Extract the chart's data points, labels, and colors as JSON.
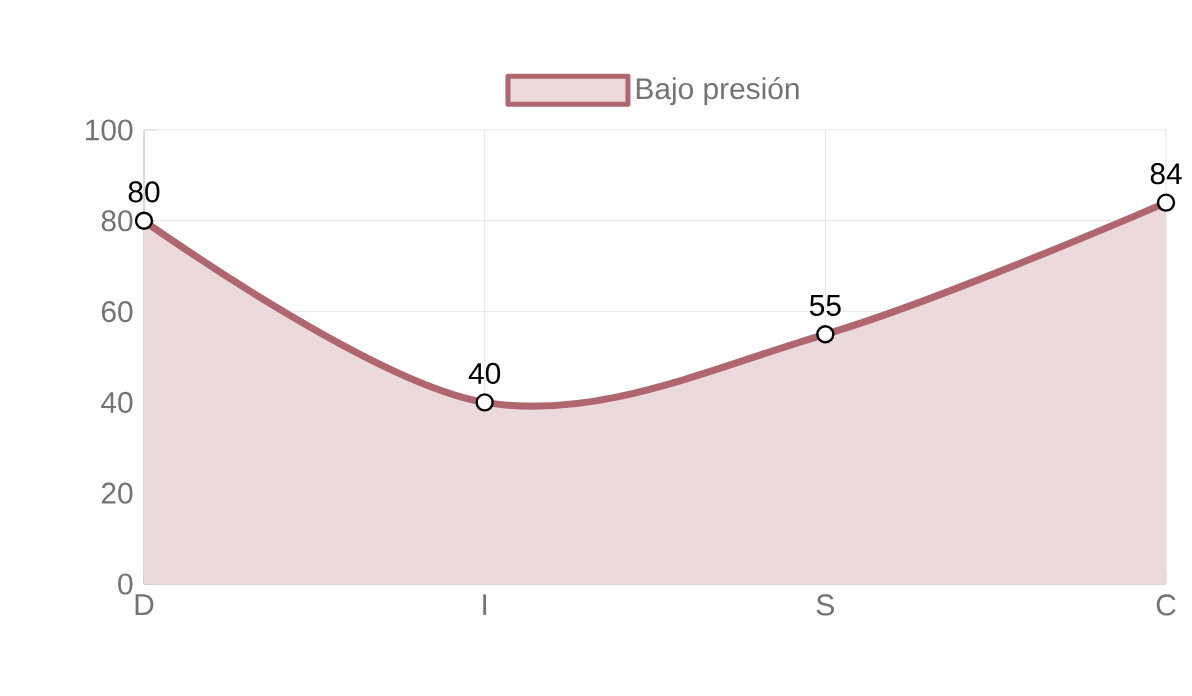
{
  "chart_data": {
    "type": "area",
    "categories": [
      "D",
      "I",
      "S",
      "C"
    ],
    "series": [
      {
        "name": "Bajo presión",
        "color": "#b0666e",
        "values": [
          80,
          40,
          55,
          84
        ]
      }
    ],
    "ylim": [
      0,
      100
    ],
    "yticks": [
      0,
      20,
      40,
      60,
      80,
      100
    ],
    "grid": true,
    "legend": "top",
    "marker": "circle",
    "line_style": "solid",
    "data_labels": true
  }
}
